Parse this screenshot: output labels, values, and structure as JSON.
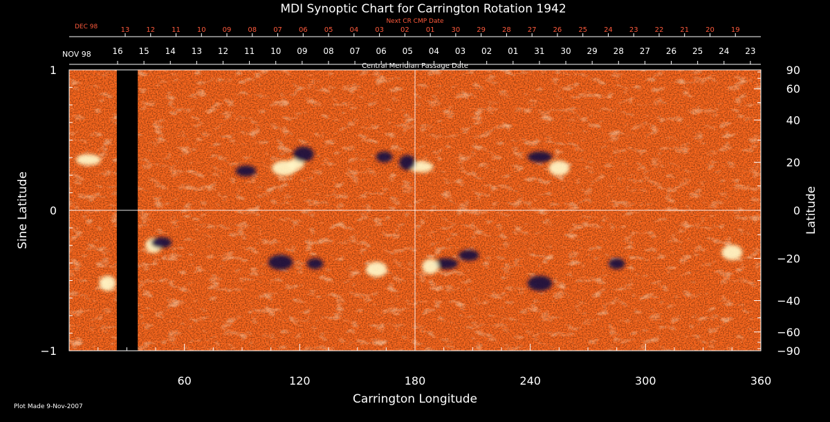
{
  "chart_data": {
    "type": "heatmap",
    "title": "MDI Synoptic Chart for Carrington Rotation 1942",
    "top_axis": {
      "label": "Next CR CMP Date",
      "month_label": "DEC 98",
      "ticks": [
        "13",
        "12",
        "11",
        "10",
        "09",
        "08",
        "07",
        "06",
        "05",
        "04",
        "03",
        "02",
        "01",
        "30",
        "29",
        "28",
        "27",
        "26",
        "25",
        "24",
        "23",
        "22",
        "21",
        "20",
        "19"
      ]
    },
    "bottom_date_axis": {
      "label": "Central Meridian Passage Date",
      "month_label": "NOV 98",
      "ticks": [
        "16",
        "15",
        "14",
        "13",
        "12",
        "11",
        "10",
        "09",
        "08",
        "07",
        "06",
        "05",
        "04",
        "03",
        "02",
        "01",
        "31",
        "30",
        "29",
        "28",
        "27",
        "26",
        "25",
        "24",
        "23"
      ]
    },
    "x_axis": {
      "label": "Carrington Longitude",
      "range": [
        0,
        360
      ],
      "ticks": [
        60,
        120,
        180,
        240,
        300,
        360
      ]
    },
    "y_axis_left": {
      "label": "Sine Latitude",
      "range": [
        -1,
        1
      ],
      "ticks": [
        "1",
        "0",
        "−1"
      ]
    },
    "y_axis_right": {
      "label": "Latitude",
      "ticks": [
        90,
        60,
        40,
        20,
        0,
        -20,
        -40,
        -60,
        -90
      ],
      "tick_labels": [
        "90",
        "60",
        "40",
        "20",
        "0",
        "−20",
        "−40",
        "−60",
        "−90"
      ]
    },
    "data_gap_longitude": [
      24.8,
      35.7
    ],
    "crosshair": {
      "longitude": 180,
      "sine_latitude": 0
    },
    "colors": {
      "background_field": "#ff6a1f",
      "positive_polarity": "#fff7c8",
      "negative_polarity": "#1a0a40",
      "gap": "#000000",
      "next_cr_dates": "#ff5a3c"
    },
    "active_regions": [
      {
        "polarity": "positive",
        "lon": 118,
        "sinlat": 0.33
      },
      {
        "polarity": "negative",
        "lon": 122,
        "sinlat": 0.4
      },
      {
        "polarity": "positive",
        "lon": 183,
        "sinlat": 0.31
      },
      {
        "polarity": "negative",
        "lon": 176,
        "sinlat": 0.34
      },
      {
        "polarity": "negative",
        "lon": 92,
        "sinlat": 0.28
      },
      {
        "polarity": "positive",
        "lon": 112,
        "sinlat": 0.3
      },
      {
        "polarity": "negative",
        "lon": 164,
        "sinlat": 0.38
      },
      {
        "polarity": "positive",
        "lon": 255,
        "sinlat": 0.3
      },
      {
        "polarity": "negative",
        "lon": 245,
        "sinlat": 0.38
      },
      {
        "polarity": "positive",
        "lon": 44,
        "sinlat": -0.25
      },
      {
        "polarity": "negative",
        "lon": 48,
        "sinlat": -0.23
      },
      {
        "polarity": "negative",
        "lon": 110,
        "sinlat": -0.37
      },
      {
        "polarity": "negative",
        "lon": 128,
        "sinlat": -0.38
      },
      {
        "polarity": "positive",
        "lon": 160,
        "sinlat": -0.42
      },
      {
        "polarity": "negative",
        "lon": 196,
        "sinlat": -0.38
      },
      {
        "polarity": "positive",
        "lon": 188,
        "sinlat": -0.4
      },
      {
        "polarity": "negative",
        "lon": 208,
        "sinlat": -0.32
      },
      {
        "polarity": "negative",
        "lon": 245,
        "sinlat": -0.52
      },
      {
        "polarity": "negative",
        "lon": 285,
        "sinlat": -0.38
      },
      {
        "polarity": "positive",
        "lon": 345,
        "sinlat": -0.3
      },
      {
        "polarity": "positive",
        "lon": 10,
        "sinlat": 0.36
      },
      {
        "polarity": "positive",
        "lon": 20,
        "sinlat": -0.52
      }
    ]
  },
  "footer": {
    "plot_made": "Plot Made  9-Nov-2007"
  }
}
